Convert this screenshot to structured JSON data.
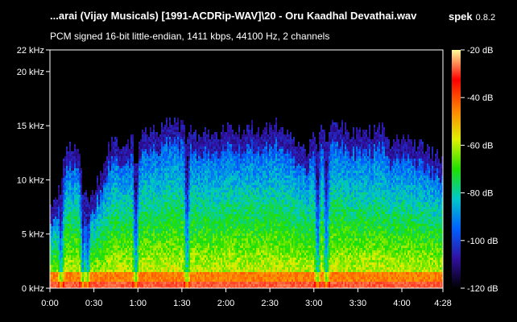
{
  "header": {
    "file_title": "...arai (Vijay Musicals) [1991-ACDRip-WAV]\\20 - Oru Kaadhal Devathai.wav",
    "app_name": "spek",
    "app_version": "0.8.2",
    "stream_info": "PCM signed 16-bit little-endian, 1411 kbps, 44100 Hz, 2 channels"
  },
  "chart_data": {
    "type": "heatmap",
    "title": "",
    "xlabel": "",
    "ylabel": "",
    "x_unit": "seconds",
    "xlim": [
      0,
      268
    ],
    "x_ticks": [
      {
        "value": 0,
        "label": "0:00"
      },
      {
        "value": 30,
        "label": "0:30"
      },
      {
        "value": 60,
        "label": "1:00"
      },
      {
        "value": 90,
        "label": "1:30"
      },
      {
        "value": 120,
        "label": "2:00"
      },
      {
        "value": 150,
        "label": "2:30"
      },
      {
        "value": 180,
        "label": "3:00"
      },
      {
        "value": 210,
        "label": "3:30"
      },
      {
        "value": 240,
        "label": "4:00"
      },
      {
        "value": 268,
        "label": "4:28"
      }
    ],
    "y_unit": "kHz",
    "ylim": [
      0,
      22
    ],
    "y_ticks": [
      {
        "value": 0,
        "label": "0 kHz"
      },
      {
        "value": 5,
        "label": "5 kHz"
      },
      {
        "value": 10,
        "label": "10 kHz"
      },
      {
        "value": 15,
        "label": "15 kHz"
      },
      {
        "value": 20,
        "label": "20 kHz"
      },
      {
        "value": 22,
        "label": "22 kHz"
      }
    ],
    "colorbar": {
      "range": [
        -120,
        -20
      ],
      "unit": "dB",
      "ticks": [
        {
          "value": -20,
          "label": "-20 dB"
        },
        {
          "value": -40,
          "label": "-40 dB"
        },
        {
          "value": -60,
          "label": "-60 dB"
        },
        {
          "value": -80,
          "label": "-80 dB"
        },
        {
          "value": -100,
          "label": "-100 dB"
        },
        {
          "value": -120,
          "label": "-120 dB"
        }
      ],
      "colors": [
        "#fefe9a",
        "#ff0000",
        "#ff8000",
        "#e0f000",
        "#20e000",
        "#00c8c8",
        "#0060ff",
        "#3010a0",
        "#000000"
      ]
    },
    "envelope": {
      "x": [
        0,
        4,
        8,
        12,
        14,
        18,
        20,
        23,
        26,
        30,
        36,
        40,
        44,
        46,
        48,
        52,
        56,
        58,
        62,
        66,
        70,
        72,
        76,
        82,
        88,
        94,
        100,
        106,
        112,
        118,
        124,
        130,
        136,
        142,
        148,
        154,
        160,
        166,
        172,
        174,
        178,
        182,
        186,
        190,
        196,
        202,
        208,
        214,
        220,
        226,
        232,
        238,
        244,
        250,
        256,
        262,
        268
      ],
      "top_khz": [
        7.0,
        7.8,
        11.0,
        12.5,
        12.8,
        12.8,
        12.0,
        9.5,
        8.0,
        8.5,
        10.8,
        12.8,
        13.0,
        13.2,
        12.5,
        12.8,
        13.5,
        12.0,
        13.8,
        14.0,
        14.2,
        13.6,
        14.5,
        14.8,
        14.5,
        14.6,
        13.8,
        14.0,
        13.6,
        14.2,
        14.4,
        13.8,
        14.5,
        14.0,
        14.2,
        14.6,
        14.0,
        13.2,
        12.8,
        11.5,
        14.0,
        14.5,
        14.8,
        14.4,
        14.8,
        14.0,
        13.6,
        14.2,
        13.8,
        14.4,
        12.4,
        13.6,
        13.2,
        12.8,
        12.2,
        11.8,
        11.4
      ]
    },
    "dips_seconds": [
      7,
      22,
      25,
      58,
      93,
      182,
      188
    ]
  }
}
